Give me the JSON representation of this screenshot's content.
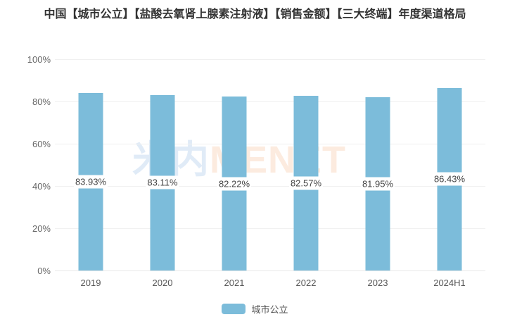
{
  "title": "中国【城市公立】【盐酸去氧肾上腺素注射液】【销售金额】【三大终端】年度渠道格局",
  "watermark": {
    "cn": "米内",
    "en": "MENET"
  },
  "legend": {
    "label": "城市公立"
  },
  "colors": {
    "bar": "#7cbcda",
    "background": "#ffffff",
    "grid": "#f0f0f0",
    "title_text": "#333333",
    "axis_text": "#666666",
    "value_label_text": "#444444",
    "watermark_cn": "#e0ebf7",
    "watermark_en": "#fcebdf"
  },
  "chart_data": {
    "type": "bar",
    "title": "中国【城市公立】【盐酸去氧肾上腺素注射液】【销售金额】【三大终端】年度渠道格局",
    "series_name": "城市公立",
    "categories": [
      "2019",
      "2020",
      "2021",
      "2022",
      "2023",
      "2024H1"
    ],
    "values": [
      83.93,
      83.11,
      82.22,
      82.57,
      81.95,
      86.43
    ],
    "value_labels": [
      "83.93%",
      "83.11%",
      "82.22%",
      "82.57%",
      "81.95%",
      "86.43%"
    ],
    "xlabel": "",
    "ylabel": "",
    "ylim": [
      0,
      100
    ],
    "y_ticks_top_down": [
      "100%",
      "80%",
      "60%",
      "40%",
      "20%",
      "0%"
    ],
    "grid": true,
    "legend_position": "bottom",
    "value_label_position": "inside-center-white-box"
  }
}
